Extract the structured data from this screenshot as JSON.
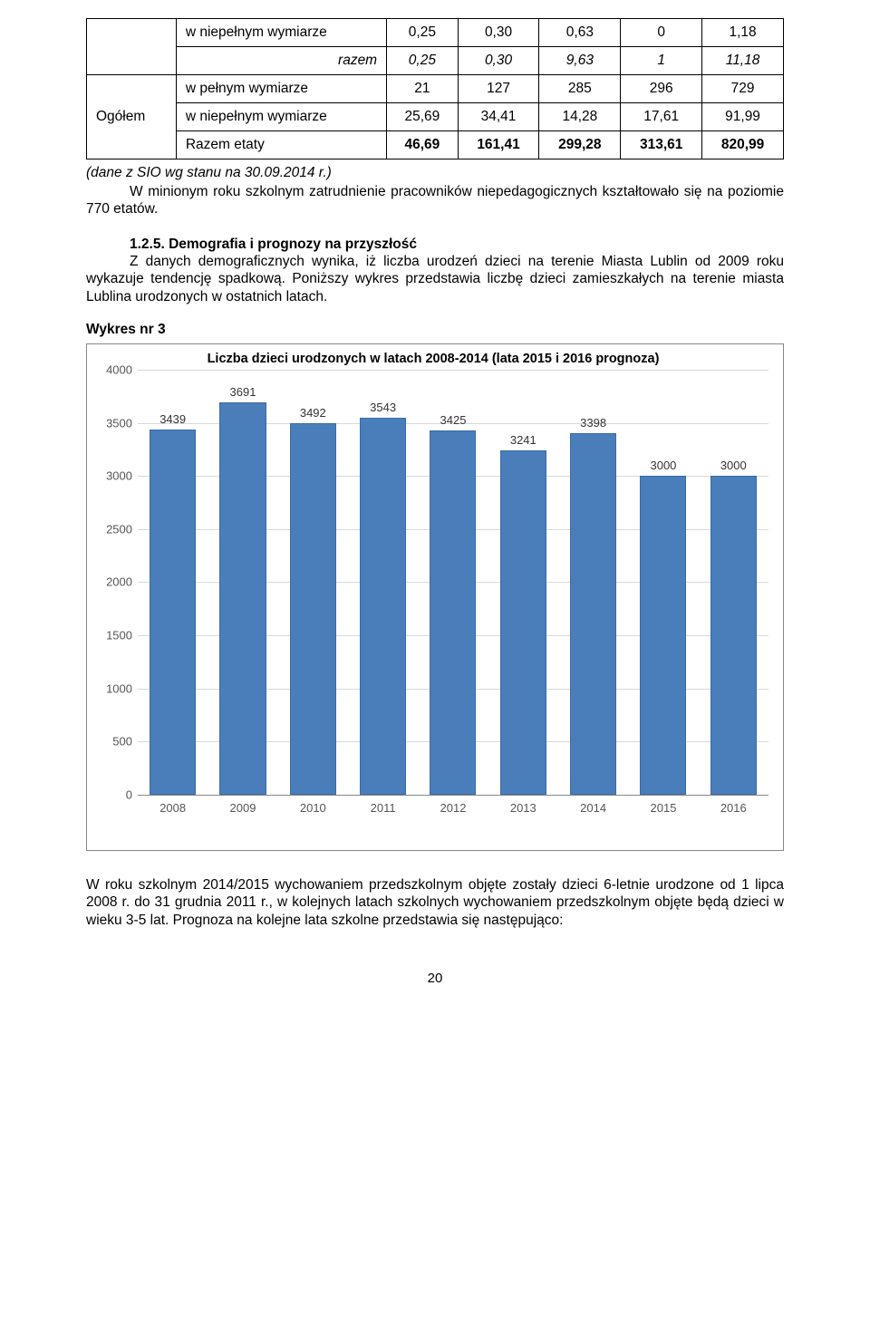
{
  "table": {
    "rows": [
      {
        "group": "",
        "label": "w niepełnym wymiarze",
        "vals": [
          "0,25",
          "0,30",
          "0,63",
          "0",
          "1,18"
        ]
      },
      {
        "group": "",
        "label": "razem",
        "italic": true,
        "vals": [
          "0,25",
          "0,30",
          "9,63",
          "1",
          "11,18"
        ]
      },
      {
        "group": "Ogółem",
        "label": "w pełnym wymiarze",
        "vals": [
          "21",
          "127",
          "285",
          "296",
          "729"
        ]
      },
      {
        "group": "",
        "label": "w niepełnym wymiarze",
        "vals": [
          "25,69",
          "34,41",
          "14,28",
          "17,61",
          "91,99"
        ]
      },
      {
        "group": "",
        "label": "Razem etaty",
        "bold": true,
        "vals": [
          "46,69",
          "161,41",
          "299,28",
          "313,61",
          "820,99"
        ]
      }
    ],
    "group_label": "Ogółem",
    "border_color": "#000000",
    "font_size": 15.5
  },
  "source_note": "(dane z SIO wg stanu na 30.09.2014 r.)",
  "para1": "W minionym roku szkolnym zatrudnienie pracowników niepedagogicznych kształtowało się na poziomie 770 etatów.",
  "section": {
    "num_title": "1.2.5. Demografia i prognozy na przyszłość",
    "body": "Z danych demograficznych wynika, iż liczba urodzeń dzieci na terenie Miasta Lublin od 2009 roku wykazuje tendencję spadkową. Poniższy wykres przedstawia liczbę dzieci zamieszkałych na terenie miasta Lublina urodzonych w ostatnich latach."
  },
  "chart_label": "Wykres nr 3",
  "chart": {
    "type": "bar",
    "title": "Liczba dzieci urodzonych w latach 2008-2014 (lata 2015 i 2016 prognoza)",
    "categories": [
      "2008",
      "2009",
      "2010",
      "2011",
      "2012",
      "2013",
      "2014",
      "2015",
      "2016"
    ],
    "values": [
      3439,
      3691,
      3492,
      3543,
      3425,
      3241,
      3398,
      3000,
      3000
    ],
    "bar_color": "#4a7ebb",
    "bar_border": "#3a6aa5",
    "ylim": [
      0,
      4000
    ],
    "ytick_step": 500,
    "grid_color": "#d9d9d9",
    "background_color": "#ffffff",
    "plot_border": "#888888",
    "title_fontsize": 14.5,
    "label_fontsize": 13,
    "bar_width": 0.66
  },
  "footer_para": "W roku szkolnym 2014/2015 wychowaniem przedszkolnym objęte zostały dzieci 6-letnie urodzone od 1 lipca 2008 r. do 31 grudnia 2011 r., w kolejnych latach szkolnych wychowaniem przedszkolnym objęte będą dzieci w wieku 3-5 lat. Prognoza na kolejne lata szkolne przedstawia się następująco:",
  "page_number": "20"
}
